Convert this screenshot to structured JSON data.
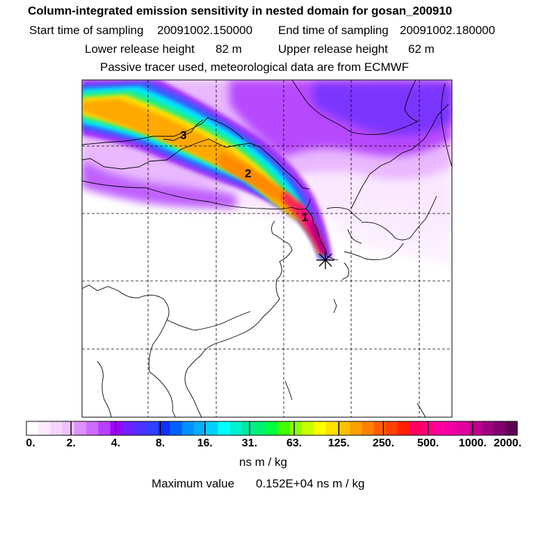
{
  "header": {
    "title": "Column-integrated emission sensitivity in nested domain for gosan_200910",
    "start_label": "Start time of sampling",
    "start_value": "20091002.150000",
    "end_label": "End time of sampling",
    "end_value": "20091002.180000",
    "lower_label": "Lower release height",
    "lower_value": "82 m",
    "upper_label": "Upper release height",
    "upper_value": "62 m",
    "note": "Passive tracer used, meteorological data are from ECMWF"
  },
  "map": {
    "plume_labels": [
      "3",
      "2",
      "1"
    ],
    "release_marker": "asterisk",
    "colors": {
      "background": "#f8eeff",
      "light_purple": "#e8b8ff",
      "purple": "#b040ff",
      "blue": "#3050ff",
      "cyan": "#00f0ff",
      "green": "#30ff60",
      "yellow": "#ffe000",
      "orange": "#ffa000",
      "red": "#ff2050",
      "magenta": "#ff00a0"
    }
  },
  "colorbar": {
    "ticks": [
      "0.",
      "2.",
      "4.",
      "8.",
      "16.",
      "31.",
      "63.",
      "125.",
      "250.",
      "500.",
      "1000.",
      "2000."
    ],
    "colors": [
      "#ffffff",
      "#fbeaff",
      "#f5d5ff",
      "#efc0ff",
      "#dd90ff",
      "#cc6cff",
      "#b840ff",
      "#a000ff",
      "#7020ff",
      "#5030ff",
      "#3040ff",
      "#1030ff",
      "#0060ff",
      "#0090ff",
      "#00b0ff",
      "#00d0ff",
      "#00ffff",
      "#00f0d0",
      "#00e8a0",
      "#00f070",
      "#00ff40",
      "#40ff00",
      "#90ff00",
      "#c8ff00",
      "#ffff00",
      "#ffe000",
      "#ffc000",
      "#ffa000",
      "#ff8000",
      "#ff6000",
      "#ff4000",
      "#ff2000",
      "#ff0060",
      "#ff0080",
      "#ff00a0",
      "#f000a0",
      "#e000a0",
      "#c00090",
      "#a00080",
      "#800070",
      "#600050"
    ],
    "unit": "ns m / kg"
  },
  "footer": {
    "max_label": "Maximum value",
    "max_value": "0.152E+04 ns m / kg"
  }
}
